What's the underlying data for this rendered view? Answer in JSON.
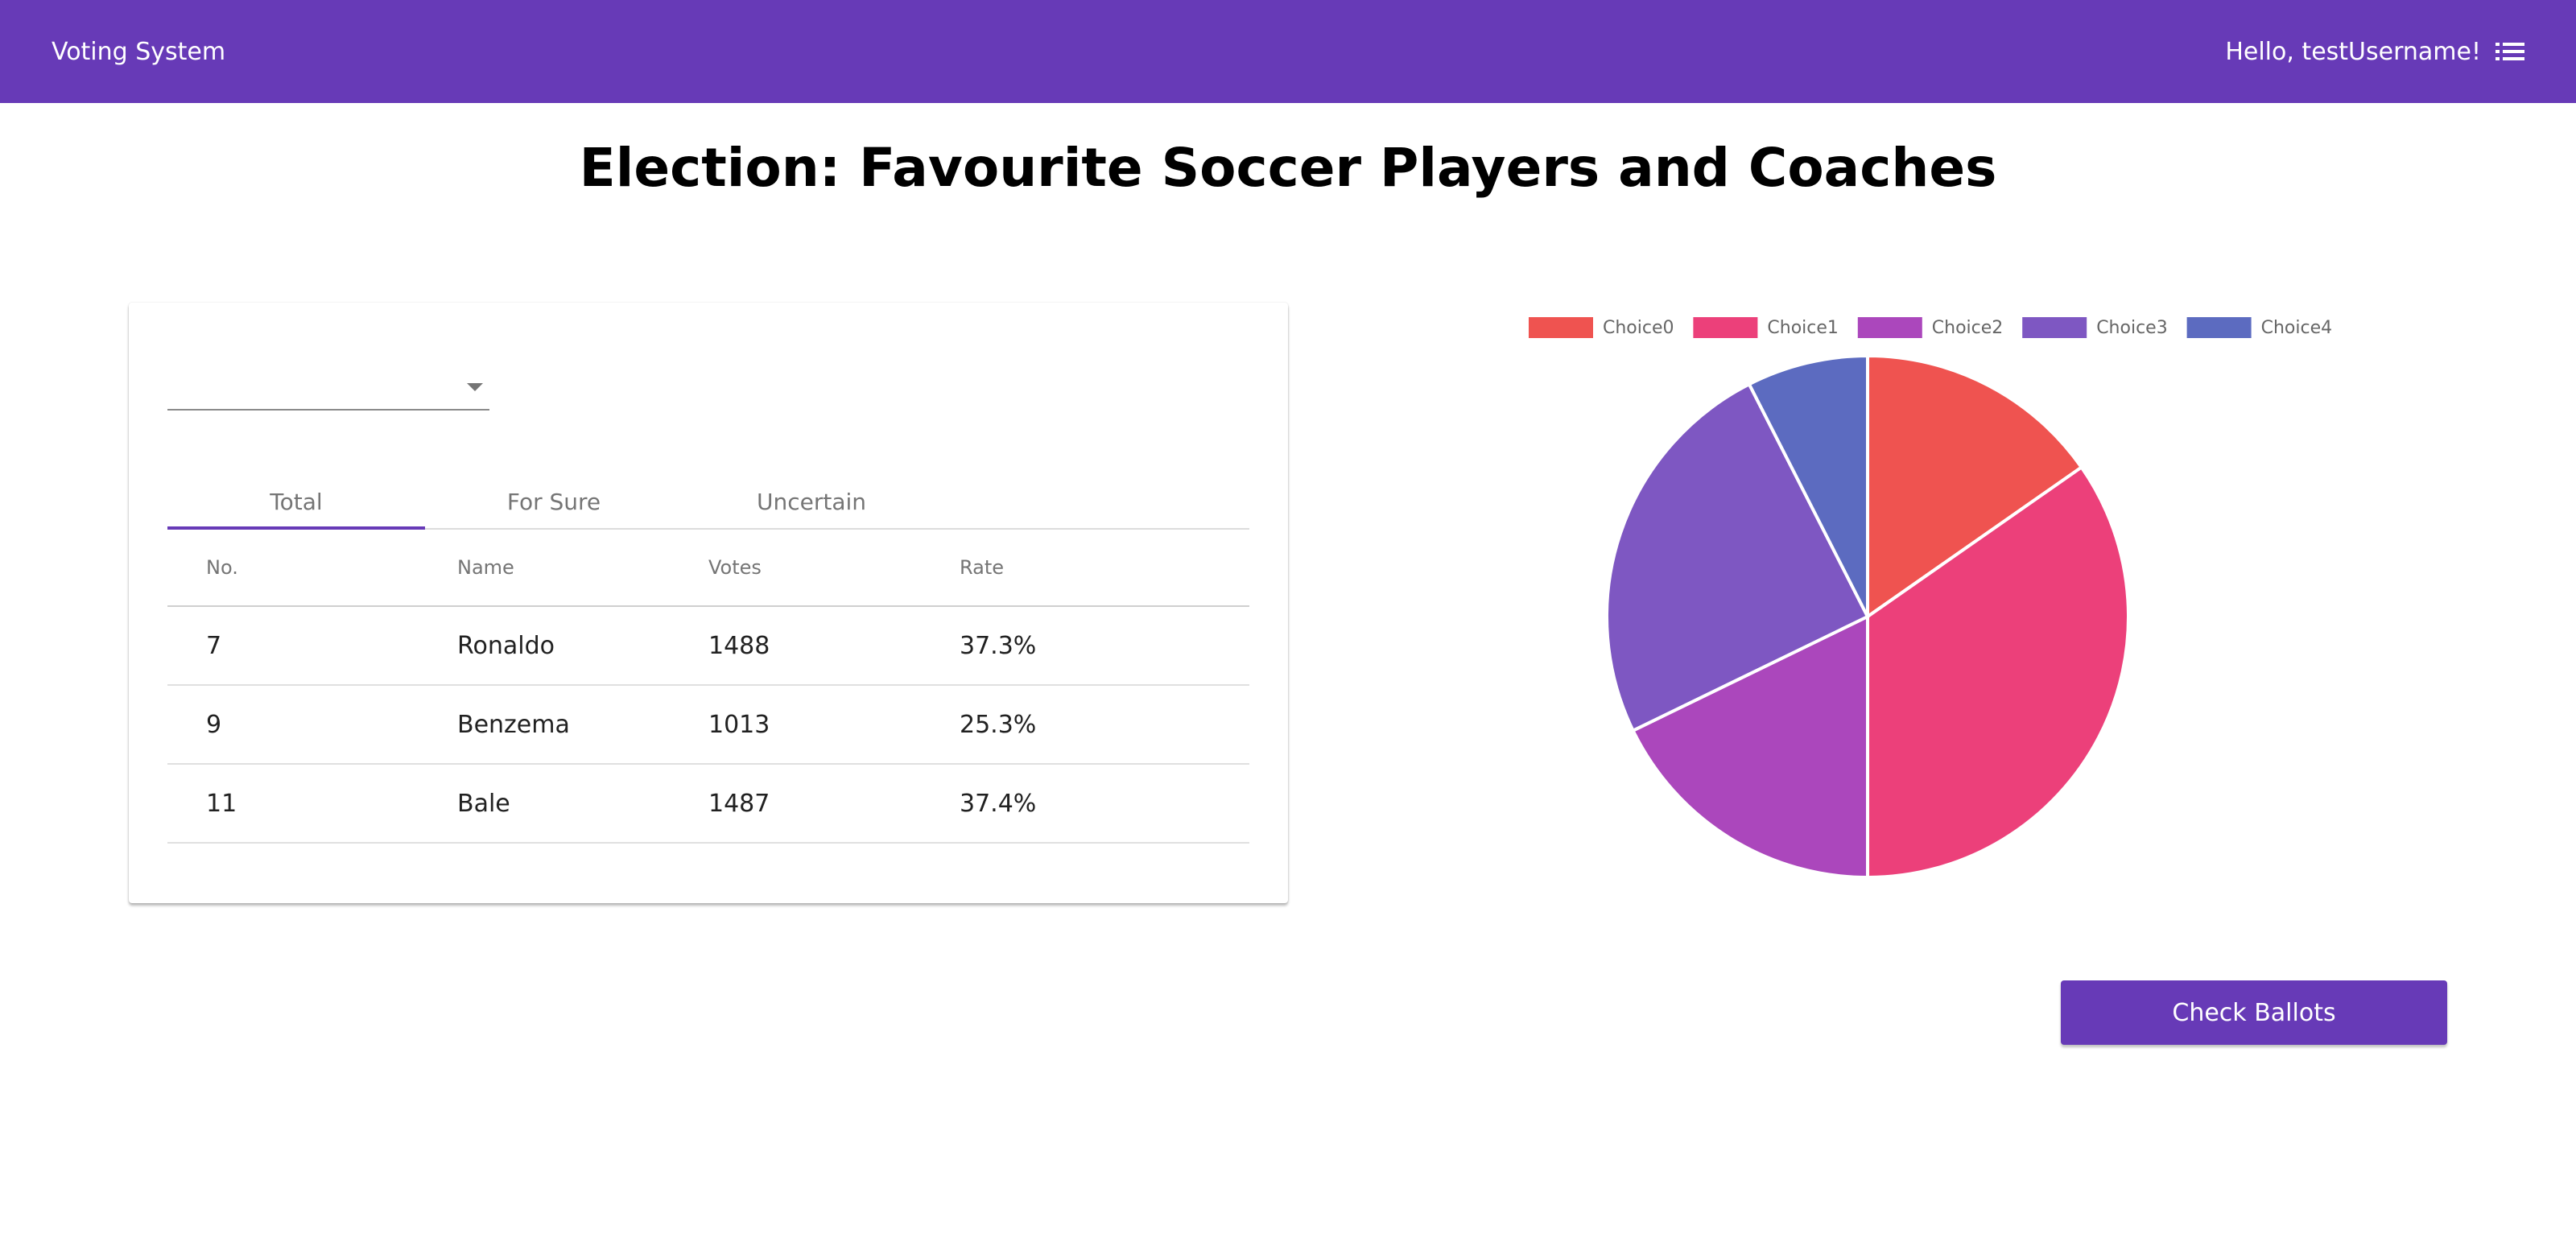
{
  "header": {
    "app_title": "Voting System",
    "greeting": "Hello, testUsername!",
    "menu_icon": "list-menu-icon",
    "background_color": "#673ab7"
  },
  "page": {
    "title": "Election: Favourite Soccer Players and Coaches"
  },
  "results_card": {
    "dropdown": {
      "selected_value": "",
      "icon": "chevron-down-icon"
    },
    "tabs": [
      {
        "label": "Total",
        "active": true
      },
      {
        "label": "For Sure",
        "active": false
      },
      {
        "label": "Uncertain",
        "active": false
      }
    ],
    "columns": [
      "No.",
      "Name",
      "Votes",
      "Rate"
    ],
    "rows": [
      {
        "no": "7",
        "name": "Ronaldo",
        "votes": "1488",
        "rate": "37.3%"
      },
      {
        "no": "9",
        "name": "Benzema",
        "votes": "1013",
        "rate": "25.3%"
      },
      {
        "no": "11",
        "name": "Bale",
        "votes": "1487",
        "rate": "37.4%"
      }
    ]
  },
  "chart_data": {
    "type": "pie",
    "legend_position": "top",
    "labels": [
      "Choice0",
      "Choice1",
      "Choice2",
      "Choice3",
      "Choice4"
    ],
    "values": [
      15.3,
      34.7,
      17.8,
      24.7,
      7.5
    ],
    "colors": [
      "#ef5350",
      "#ec407a",
      "#ab47bc",
      "#7e57c2",
      "#5c6bc0"
    ]
  },
  "actions": {
    "check_ballots_label": "Check Ballots",
    "button_color": "#673ab7"
  }
}
